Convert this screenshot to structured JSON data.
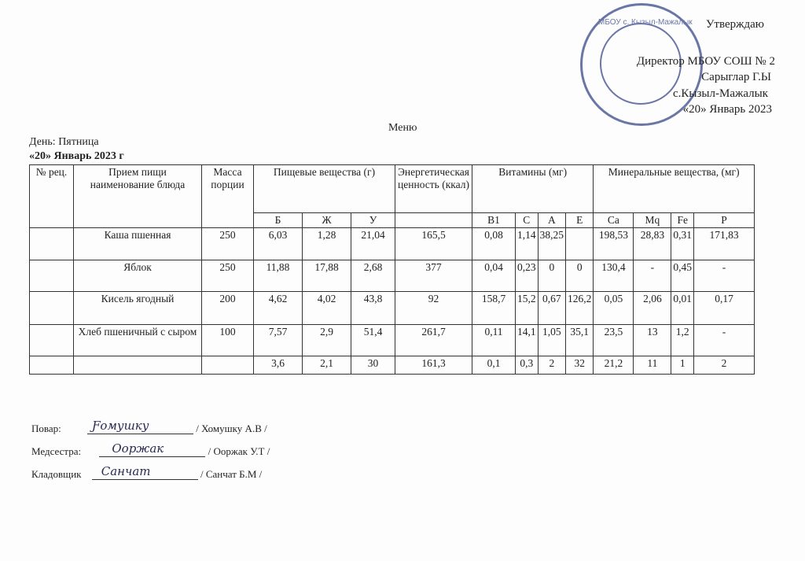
{
  "approval": {
    "line1": "Утверждаю",
    "line2": "Директор МБОУ СОШ № 2",
    "line3": "Сарыглар Г.Ы",
    "line4": "с.Кызыл-Мажалык",
    "line5": "«20» Январь  2023"
  },
  "stamp_text": "МБОУ с. Кызыл-Мажалык",
  "title": "Меню",
  "day": "День: Пятница",
  "date": "«20» Январь 2023 г",
  "table": {
    "headers": {
      "rec": "№ рец.",
      "name": "Прием пищи  наименование блюда",
      "mass": "Масса порции",
      "nutrients": "Пищевые вещества (г)",
      "energy": "Энергетическая ценность  (ккал)",
      "vitamins": "Витамины (мг)",
      "minerals": "Минеральные вещества, (мг)"
    },
    "subheaders": [
      "Б",
      "Ж",
      "У",
      "В1",
      "С",
      "А",
      "Е",
      "Са",
      "Mq",
      "Fe",
      "Р"
    ],
    "rows": [
      {
        "rec": "",
        "name": "Каша пшенная",
        "mass": "250",
        "b": "6,03",
        "zh": "1,28",
        "u": "21,04",
        "energy": "165,5",
        "b1": "0,08",
        "c": "1,14",
        "a": "38,25",
        "e": "",
        "ca": "198,53",
        "mg": "28,83",
        "fe": "0,31",
        "p": "171,83"
      },
      {
        "rec": "",
        "name": "Яблок",
        "mass": "250",
        "b": "11,88",
        "zh": "17,88",
        "u": "2,68",
        "energy": "377",
        "b1": "0,04",
        "c": "0,23",
        "a": "0",
        "e": "0",
        "ca": "130,4",
        "mg": "-",
        "fe": "0,45",
        "p": "-"
      },
      {
        "rec": "",
        "name": "Кисель ягодный",
        "mass": "200",
        "b": "4,62",
        "zh": "4,02",
        "u": "43,8",
        "energy": "92",
        "b1": "158,7",
        "c": "15,2",
        "a": "0,67",
        "e": "126,2",
        "ca": "0,05",
        "mg": "2,06",
        "fe": "0,01",
        "p": "0,17"
      },
      {
        "rec": "",
        "name": "Хлеб пшеничный с сыром",
        "mass": "100",
        "b": "7,57",
        "zh": "2,9",
        "u": "51,4",
        "energy": "261,7",
        "b1": "0,11",
        "c": "14,1",
        "a": "1,05",
        "e": "35,1",
        "ca": "23,5",
        "mg": "13",
        "fe": "1,2",
        "p": "-"
      },
      {
        "rec": "",
        "name": "",
        "mass": "",
        "b": "3,6",
        "zh": "2,1",
        "u": "30",
        "energy": "161,3",
        "b1": "0,1",
        "c": "0,3",
        "a": "2",
        "e": "32",
        "ca": "21,2",
        "mg": "11",
        "fe": "1",
        "p": "2"
      }
    ]
  },
  "signatures": [
    {
      "role": "Повар:",
      "name": "/ Хомушку А.В /"
    },
    {
      "role": "Медсестра:",
      "name": "/ Ооржак У.Т /"
    },
    {
      "role": "Кладовщик",
      "name": "/ Санчат Б.М /"
    }
  ]
}
